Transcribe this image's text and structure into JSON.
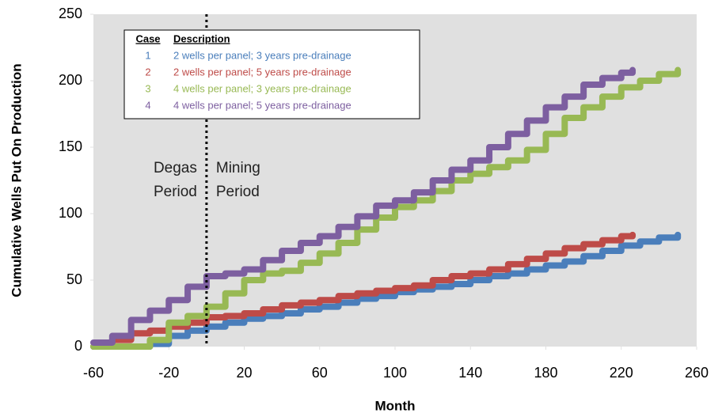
{
  "chart_data": {
    "type": "line",
    "step": "post",
    "x_label": "Month",
    "y_label": "Cumulative Wells Put On Production",
    "xlim": [
      -60,
      260
    ],
    "xticks": [
      -60,
      -20,
      20,
      60,
      100,
      140,
      180,
      220,
      260
    ],
    "ylim": [
      0,
      250
    ],
    "yticks": [
      0,
      50,
      100,
      150,
      200,
      250
    ],
    "grid": false,
    "plot_background": "#e0e0e0",
    "legend_header": [
      "Case",
      "Description"
    ],
    "vline_x": 0,
    "annotations": [
      {
        "lines": [
          "Degas",
          "Period"
        ]
      },
      {
        "lines": [
          "Mining",
          "Period"
        ]
      }
    ],
    "series": [
      {
        "case": 1,
        "name": "2 wells per panel; 3 years pre-drainage",
        "color": "#4a7ebb",
        "x": [
          -60,
          -50,
          -40,
          -30,
          -20,
          -10,
          0,
          10,
          20,
          30,
          40,
          50,
          60,
          70,
          80,
          90,
          100,
          110,
          120,
          130,
          140,
          150,
          160,
          170,
          180,
          190,
          200,
          210,
          220,
          230,
          240,
          250
        ],
        "values": [
          0,
          0,
          0,
          2,
          8,
          12,
          15,
          18,
          21,
          23,
          25,
          28,
          30,
          33,
          36,
          38,
          41,
          43,
          45,
          47,
          50,
          53,
          55,
          58,
          61,
          64,
          68,
          72,
          76,
          79,
          82,
          84
        ]
      },
      {
        "case": 2,
        "name": "2 wells per panel; 5 years pre-drainage",
        "color": "#be4b48",
        "x": [
          -60,
          -50,
          -40,
          -30,
          -20,
          -10,
          0,
          10,
          20,
          30,
          40,
          50,
          60,
          70,
          80,
          90,
          100,
          110,
          120,
          130,
          140,
          150,
          160,
          170,
          180,
          190,
          200,
          210,
          220,
          226
        ],
        "values": [
          0,
          5,
          10,
          12,
          15,
          18,
          22,
          23,
          25,
          28,
          31,
          33,
          35,
          38,
          40,
          42,
          44,
          46,
          50,
          53,
          55,
          58,
          62,
          66,
          70,
          74,
          77,
          80,
          83,
          84
        ]
      },
      {
        "case": 3,
        "name": "4 wells per panel; 3 years pre-drainage",
        "color": "#98b954",
        "x": [
          -60,
          -50,
          -40,
          -30,
          -20,
          -10,
          0,
          10,
          20,
          30,
          40,
          50,
          60,
          70,
          80,
          90,
          100,
          110,
          120,
          130,
          140,
          150,
          160,
          170,
          180,
          190,
          200,
          210,
          220,
          230,
          240,
          250
        ],
        "values": [
          0,
          0,
          0,
          5,
          18,
          23,
          30,
          40,
          50,
          55,
          57,
          63,
          70,
          78,
          88,
          97,
          105,
          110,
          117,
          125,
          130,
          135,
          140,
          148,
          160,
          172,
          180,
          188,
          195,
          200,
          205,
          208
        ]
      },
      {
        "case": 4,
        "name": "4 wells per panel; 5 years pre-drainage",
        "color": "#7d5fa0",
        "x": [
          -60,
          -50,
          -40,
          -30,
          -20,
          -10,
          0,
          10,
          20,
          30,
          40,
          50,
          60,
          70,
          80,
          90,
          100,
          110,
          120,
          130,
          140,
          150,
          160,
          170,
          180,
          190,
          200,
          210,
          220,
          226
        ],
        "values": [
          3,
          8,
          20,
          27,
          35,
          45,
          53,
          55,
          58,
          65,
          72,
          78,
          83,
          90,
          98,
          106,
          110,
          116,
          125,
          133,
          140,
          150,
          160,
          170,
          180,
          188,
          197,
          202,
          206,
          208
        ]
      }
    ]
  }
}
